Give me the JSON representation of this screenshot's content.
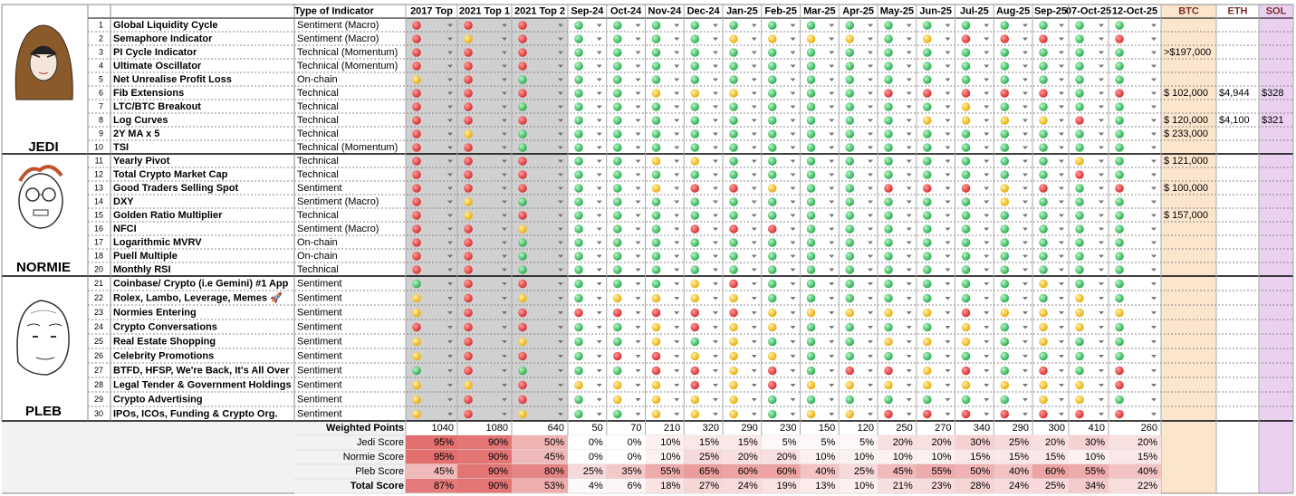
{
  "header": {
    "type_of_indicator": "Type of Indicator",
    "columns": [
      "2017 Top",
      "2021 Top 1",
      "2021 Top 2",
      "Sep-24",
      "Oct-24",
      "Nov-24",
      "Dec-24",
      "Jan-25",
      "Feb-25",
      "Mar-25",
      "Apr-25",
      "May-25",
      "Jun-25",
      "Jul-25",
      "Aug-25",
      "Sep-25",
      "07-Oct-25",
      "12-Oct-25"
    ],
    "assets": [
      "BTC",
      "ETH",
      "SOL"
    ]
  },
  "groups": [
    {
      "name": "JEDI",
      "rows": [
        {
          "number": 1,
          "name": "Global Liquidity Cycle",
          "type": "Sentiment (Macro)",
          "signals": [
            "red",
            "red",
            "red",
            "green",
            "green",
            "green",
            "green",
            "green",
            "green",
            "green",
            "green",
            "green",
            "green",
            "green",
            "green",
            "green",
            "green",
            "green"
          ]
        },
        {
          "number": 2,
          "name": "Semaphore Indicator",
          "type": "Sentiment (Macro)",
          "signals": [
            "red",
            "yellow",
            "red",
            "green",
            "green",
            "green",
            "green",
            "yellow",
            "yellow",
            "yellow",
            "yellow",
            "green",
            "yellow",
            "red",
            "red",
            "red",
            "green",
            "red"
          ]
        },
        {
          "number": 3,
          "name": "PI Cycle Indicator",
          "type": "Technical (Momentum)",
          "signals": [
            "red",
            "red",
            "red",
            "green",
            "green",
            "green",
            "green",
            "green",
            "green",
            "green",
            "green",
            "green",
            "green",
            "green",
            "green",
            "green",
            "green",
            "green"
          ],
          "btc": ">$197,000"
        },
        {
          "number": 4,
          "name": "Ultimate Oscillator",
          "type": "Technical (Momentum)",
          "signals": [
            "red",
            "red",
            "red",
            "green",
            "green",
            "green",
            "green",
            "green",
            "green",
            "green",
            "green",
            "green",
            "green",
            "green",
            "green",
            "green",
            "green",
            "green"
          ]
        },
        {
          "number": 5,
          "name": "Net Unrealise Profit Loss",
          "type": "On-chain",
          "signals": [
            "yellow",
            "red",
            "green",
            "green",
            "green",
            "green",
            "green",
            "green",
            "green",
            "green",
            "green",
            "green",
            "green",
            "green",
            "green",
            "green",
            "green",
            "green"
          ]
        },
        {
          "number": 6,
          "name": "Fib Extensions",
          "type": "Technical",
          "signals": [
            "red",
            "red",
            "red",
            "green",
            "green",
            "yellow",
            "yellow",
            "yellow",
            "green",
            "green",
            "green",
            "red",
            "red",
            "red",
            "red",
            "red",
            "green",
            "red"
          ],
          "btc": "$ 102,000",
          "eth": "$4,944",
          "sol": "$328"
        },
        {
          "number": 7,
          "name": "LTC/BTC Breakout",
          "type": "Technical",
          "signals": [
            "red",
            "red",
            "green",
            "green",
            "green",
            "green",
            "green",
            "green",
            "green",
            "green",
            "green",
            "green",
            "green",
            "yellow",
            "green",
            "green",
            "green",
            "green"
          ]
        },
        {
          "number": 8,
          "name": "Log Curves",
          "type": "Technical",
          "signals": [
            "red",
            "red",
            "red",
            "green",
            "green",
            "green",
            "green",
            "green",
            "green",
            "green",
            "green",
            "green",
            "yellow",
            "yellow",
            "yellow",
            "yellow",
            "red",
            "green"
          ],
          "btc": "$ 120,000",
          "eth": "$4,100",
          "sol": "$321"
        },
        {
          "number": 9,
          "name": "2Y MA x 5",
          "type": "Technical",
          "signals": [
            "red",
            "yellow",
            "green",
            "green",
            "green",
            "green",
            "green",
            "green",
            "green",
            "green",
            "green",
            "green",
            "green",
            "green",
            "green",
            "green",
            "green",
            "green"
          ],
          "btc": "$ 233,000"
        },
        {
          "number": 10,
          "name": "TSI",
          "type": "Technical (Momentum)",
          "signals": [
            "red",
            "red",
            "green",
            "green",
            "green",
            "green",
            "green",
            "green",
            "green",
            "green",
            "green",
            "green",
            "green",
            "green",
            "green",
            "green",
            "green",
            "green"
          ]
        }
      ]
    },
    {
      "name": "NORMIE",
      "rows": [
        {
          "number": 11,
          "name": "Yearly Pivot",
          "type": "Technical",
          "signals": [
            "red",
            "red",
            "red",
            "green",
            "green",
            "yellow",
            "yellow",
            "green",
            "green",
            "green",
            "green",
            "green",
            "green",
            "green",
            "green",
            "green",
            "yellow",
            "green"
          ],
          "btc": "$ 121,000"
        },
        {
          "number": 12,
          "name": "Total Crypto Market Cap",
          "type": "Technical",
          "signals": [
            "red",
            "red",
            "red",
            "green",
            "green",
            "green",
            "green",
            "green",
            "green",
            "green",
            "green",
            "green",
            "green",
            "green",
            "green",
            "green",
            "red",
            "green"
          ]
        },
        {
          "number": 13,
          "name": "Good Traders Selling Spot",
          "type": "Sentiment",
          "signals": [
            "red",
            "red",
            "red",
            "green",
            "green",
            "yellow",
            "red",
            "red",
            "yellow",
            "green",
            "green",
            "red",
            "red",
            "red",
            "yellow",
            "red",
            "green",
            "red"
          ],
          "btc": "$ 100,000"
        },
        {
          "number": 14,
          "name": "DXY",
          "type": "Sentiment (Macro)",
          "signals": [
            "red",
            "yellow",
            "green",
            "green",
            "green",
            "green",
            "green",
            "green",
            "green",
            "green",
            "green",
            "green",
            "green",
            "green",
            "yellow",
            "green",
            "green",
            "green"
          ]
        },
        {
          "number": 15,
          "name": "Golden Ratio Multiplier",
          "type": "Technical",
          "signals": [
            "red",
            "yellow",
            "red",
            "green",
            "green",
            "green",
            "green",
            "green",
            "green",
            "green",
            "green",
            "green",
            "green",
            "green",
            "green",
            "green",
            "green",
            "green"
          ],
          "btc": "$ 157,000"
        },
        {
          "number": 16,
          "name": "NFCI",
          "type": "Sentiment (Macro)",
          "signals": [
            "red",
            "red",
            "yellow",
            "green",
            "green",
            "green",
            "red",
            "red",
            "red",
            "green",
            "green",
            "green",
            "green",
            "green",
            "green",
            "green",
            "green",
            "green"
          ]
        },
        {
          "number": 17,
          "name": "Logarithmic MVRV",
          "type": "On-chain",
          "signals": [
            "red",
            "red",
            "green",
            "green",
            "green",
            "green",
            "green",
            "green",
            "green",
            "green",
            "green",
            "green",
            "green",
            "green",
            "green",
            "green",
            "green",
            "green"
          ]
        },
        {
          "number": 18,
          "name": "Puell Multiple",
          "type": "On-chain",
          "signals": [
            "red",
            "red",
            "green",
            "green",
            "green",
            "green",
            "green",
            "green",
            "green",
            "green",
            "green",
            "green",
            "green",
            "green",
            "green",
            "green",
            "green",
            "green"
          ]
        },
        {
          "number": 20,
          "name": "Monthly RSI",
          "type": "Technical",
          "signals": [
            "red",
            "red",
            "green",
            "green",
            "green",
            "green",
            "green",
            "green",
            "green",
            "green",
            "green",
            "green",
            "green",
            "green",
            "green",
            "green",
            "green",
            "green"
          ]
        }
      ]
    },
    {
      "name": "PLEB",
      "rows": [
        {
          "number": 21,
          "name": "Coinbase/ Crypto (i.e Gemini) #1 App",
          "type": "Sentiment",
          "signals": [
            "green",
            "red",
            "red",
            "green",
            "green",
            "green",
            "yellow",
            "red",
            "green",
            "green",
            "green",
            "green",
            "green",
            "green",
            "green",
            "yellow",
            "green",
            "green"
          ]
        },
        {
          "number": 22,
          "name": "Rolex, Lambo, Leverage, Memes 🚀",
          "type": "Sentiment",
          "signals": [
            "yellow",
            "red",
            "yellow",
            "green",
            "yellow",
            "yellow",
            "yellow",
            "yellow",
            "green",
            "green",
            "green",
            "green",
            "green",
            "green",
            "green",
            "green",
            "yellow",
            "green"
          ]
        },
        {
          "number": 23,
          "name": "Normies Entering",
          "type": "Sentiment",
          "signals": [
            "yellow",
            "red",
            "red",
            "red",
            "red",
            "red",
            "red",
            "red",
            "yellow",
            "yellow",
            "yellow",
            "yellow",
            "yellow",
            "red",
            "yellow",
            "yellow",
            "yellow",
            "yellow"
          ]
        },
        {
          "number": 24,
          "name": "Crypto Conversations",
          "type": "Sentiment",
          "signals": [
            "red",
            "red",
            "red",
            "green",
            "green",
            "yellow",
            "red",
            "yellow",
            "yellow",
            "green",
            "green",
            "green",
            "green",
            "yellow",
            "green",
            "yellow",
            "yellow",
            "green"
          ]
        },
        {
          "number": 25,
          "name": "Real Estate Shopping",
          "type": "Sentiment",
          "signals": [
            "yellow",
            "red",
            "yellow",
            "green",
            "green",
            "yellow",
            "green",
            "yellow",
            "green",
            "green",
            "green",
            "yellow",
            "yellow",
            "yellow",
            "green",
            "yellow",
            "green",
            "green"
          ]
        },
        {
          "number": 26,
          "name": "Celebrity Promotions",
          "type": "Sentiment",
          "signals": [
            "yellow",
            "red",
            "red",
            "green",
            "red",
            "red",
            "yellow",
            "yellow",
            "yellow",
            "green",
            "green",
            "green",
            "green",
            "green",
            "green",
            "green",
            "green",
            "green"
          ]
        },
        {
          "number": 27,
          "name": "BTFD, HFSP, We're Back, It's All Over",
          "type": "Sentiment",
          "signals": [
            "green",
            "red",
            "green",
            "green",
            "green",
            "red",
            "red",
            "yellow",
            "red",
            "green",
            "red",
            "red",
            "yellow",
            "red",
            "green",
            "red",
            "green",
            "red"
          ]
        },
        {
          "number": 28,
          "name": "Legal Tender & Government Holdings",
          "type": "Sentiment",
          "signals": [
            "yellow",
            "yellow",
            "red",
            "yellow",
            "yellow",
            "yellow",
            "red",
            "yellow",
            "red",
            "yellow",
            "yellow",
            "yellow",
            "yellow",
            "yellow",
            "yellow",
            "yellow",
            "yellow",
            "red"
          ]
        },
        {
          "number": 29,
          "name": "Crypto Advertising",
          "type": "Sentiment",
          "signals": [
            "yellow",
            "red",
            "red",
            "green",
            "yellow",
            "yellow",
            "yellow",
            "yellow",
            "green",
            "green",
            "green",
            "green",
            "green",
            "green",
            "green",
            "yellow",
            "yellow",
            "green"
          ]
        },
        {
          "number": 30,
          "name": "IPOs, ICOs, Funding & Crypto Org.",
          "type": "Sentiment",
          "signals": [
            "yellow",
            "red",
            "yellow",
            "green",
            "green",
            "yellow",
            "yellow",
            "yellow",
            "green",
            "yellow",
            "yellow",
            "red",
            "red",
            "red",
            "red",
            "red",
            "red",
            "red"
          ]
        }
      ]
    }
  ],
  "summary": [
    {
      "label": "Weighted Points",
      "values": [
        1040,
        1080,
        640,
        50,
        70,
        210,
        320,
        290,
        230,
        150,
        120,
        250,
        270,
        340,
        290,
        300,
        410,
        260
      ]
    },
    {
      "label": "Jedi Score",
      "values": [
        "95%",
        "90%",
        "50%",
        "0%",
        "0%",
        "10%",
        "15%",
        "15%",
        "5%",
        "5%",
        "5%",
        "20%",
        "20%",
        "30%",
        "25%",
        "20%",
        "30%",
        "20%"
      ]
    },
    {
      "label": "Normie Score",
      "values": [
        "95%",
        "90%",
        "45%",
        "0%",
        "0%",
        "10%",
        "25%",
        "20%",
        "20%",
        "10%",
        "10%",
        "10%",
        "10%",
        "15%",
        "15%",
        "15%",
        "10%",
        "15%"
      ]
    },
    {
      "label": "Pleb Score",
      "values": [
        "45%",
        "90%",
        "80%",
        "25%",
        "35%",
        "55%",
        "65%",
        "60%",
        "60%",
        "40%",
        "25%",
        "45%",
        "55%",
        "50%",
        "40%",
        "60%",
        "55%",
        "40%"
      ]
    },
    {
      "label": "Total Score",
      "values": [
        "87%",
        "90%",
        "53%",
        "4%",
        "6%",
        "18%",
        "27%",
        "24%",
        "19%",
        "13%",
        "10%",
        "21%",
        "23%",
        "28%",
        "24%",
        "25%",
        "34%",
        "22%"
      ]
    }
  ]
}
